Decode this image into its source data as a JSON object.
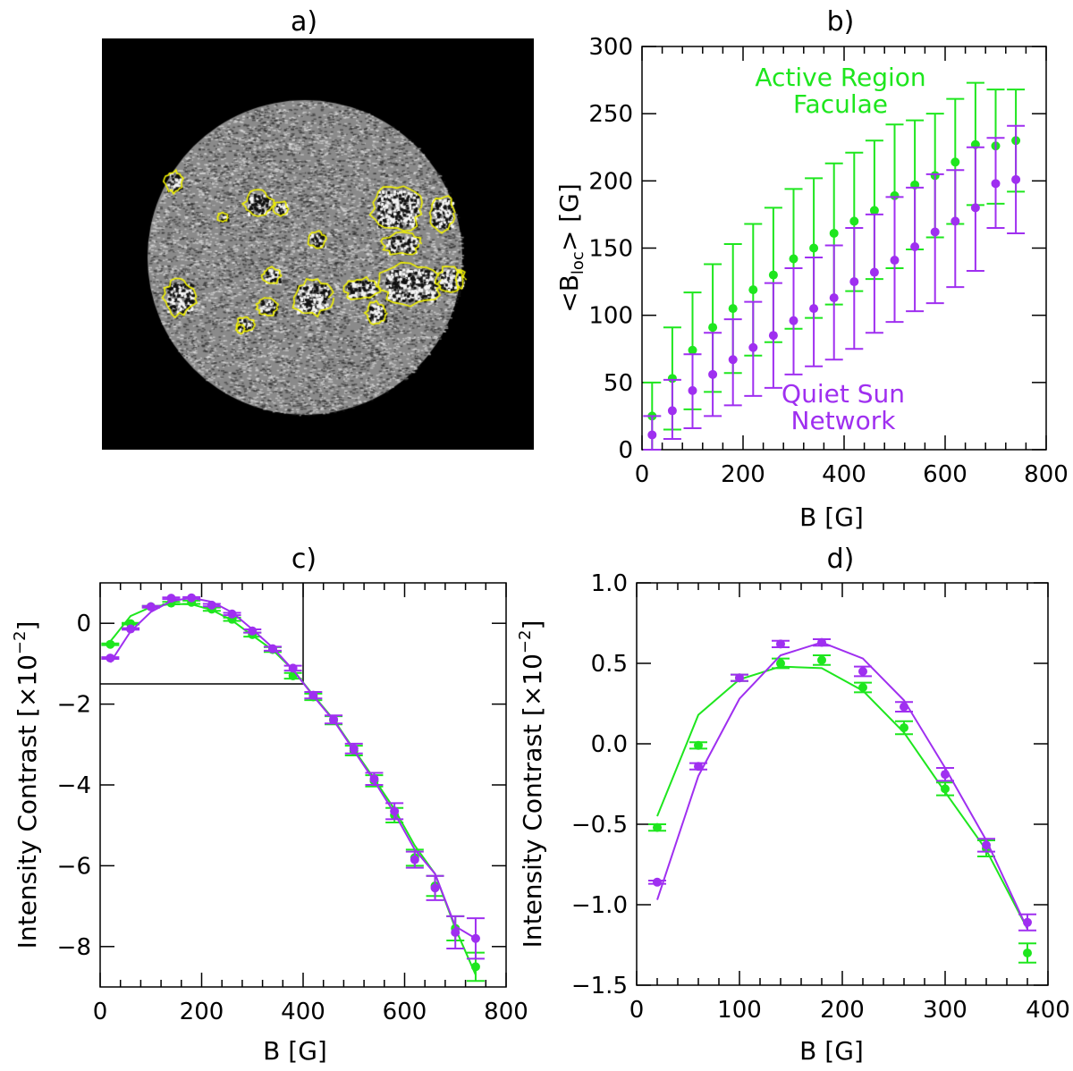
{
  "panel_a": {
    "title": "a)"
  },
  "colors": {
    "green": "#1ee61e",
    "purple": "#9f2ff0",
    "contour": "#f2f200"
  },
  "chart_data": [
    {
      "id": "b",
      "type": "scatter",
      "title": "b)",
      "xlabel": "B [G]",
      "ylabel_main": "<B",
      "ylabel_sub": "loc",
      "ylabel_tail": "> [G]",
      "xlim": [
        0,
        800
      ],
      "ylim": [
        0,
        300
      ],
      "xticks": [
        0,
        200,
        400,
        600,
        800
      ],
      "yticks": [
        0,
        50,
        100,
        150,
        200,
        250,
        300
      ],
      "annotations": [
        {
          "text": "Active Region",
          "color": "green"
        },
        {
          "text": "Faculae",
          "color": "green"
        },
        {
          "text": "Quiet Sun",
          "color": "purple"
        },
        {
          "text": "Network",
          "color": "purple"
        }
      ],
      "x": [
        20,
        60,
        100,
        140,
        180,
        220,
        260,
        300,
        340,
        380,
        420,
        460,
        500,
        540,
        580,
        620,
        660,
        700,
        740
      ],
      "series": [
        {
          "name": "Active Region Faculae",
          "color": "green",
          "values": [
            25,
            53,
            74,
            91,
            105,
            119,
            130,
            142,
            150,
            161,
            170,
            178,
            189,
            197,
            204,
            214,
            227,
            226,
            230
          ],
          "upper": [
            50,
            91,
            117,
            138,
            153,
            168,
            180,
            194,
            202,
            213,
            221,
            230,
            242,
            245,
            250,
            261,
            273,
            268,
            268
          ],
          "lower": [
            0,
            15,
            30,
            43,
            57,
            70,
            80,
            90,
            98,
            108,
            118,
            127,
            135,
            149,
            158,
            168,
            182,
            183,
            192
          ]
        },
        {
          "name": "Quiet Sun Network",
          "color": "purple",
          "values": [
            11,
            29,
            44,
            56,
            67,
            76,
            85,
            96,
            105,
            113,
            125,
            132,
            141,
            151,
            162,
            170,
            180,
            198,
            201
          ],
          "upper": [
            25,
            52,
            71,
            87,
            97,
            110,
            124,
            135,
            143,
            152,
            165,
            175,
            188,
            195,
            205,
            208,
            225,
            232,
            241
          ],
          "lower": [
            0,
            8,
            16,
            25,
            33,
            40,
            46,
            56,
            62,
            67,
            75,
            87,
            95,
            103,
            109,
            121,
            133,
            165,
            161
          ]
        }
      ]
    },
    {
      "id": "c",
      "type": "scatter",
      "title": "c)",
      "xlabel": "B [G]",
      "ylabel": "Intensity Contrast [×10",
      "ylabel_exp": "−2",
      "ylabel_tail": "]",
      "xlim": [
        0,
        800
      ],
      "ylim": [
        -9,
        1
      ],
      "xticks": [
        0,
        200,
        400,
        600,
        800
      ],
      "yticks": [
        0,
        -2,
        -4,
        -6,
        -8
      ],
      "inset_box": {
        "xlim": [
          0,
          400
        ],
        "ylim": [
          -1.5,
          1.0
        ]
      },
      "x": [
        20,
        60,
        100,
        140,
        180,
        220,
        260,
        300,
        340,
        380,
        420,
        460,
        500,
        540,
        580,
        620,
        660,
        700,
        740
      ],
      "series": [
        {
          "name": "Active Region Faculae",
          "color": "green",
          "values": [
            -0.52,
            -0.01,
            0.41,
            0.5,
            0.52,
            0.35,
            0.1,
            -0.28,
            -0.65,
            -1.3,
            -1.82,
            -2.4,
            -3.15,
            -3.9,
            -4.75,
            -5.8,
            -6.5,
            -7.55,
            -8.5
          ],
          "err": [
            0.02,
            0.02,
            0.02,
            0.03,
            0.04,
            0.04,
            0.04,
            0.05,
            0.06,
            0.07,
            0.08,
            0.1,
            0.12,
            0.14,
            0.18,
            0.2,
            0.25,
            0.3,
            0.35
          ],
          "model": [
            -0.45,
            0.18,
            0.4,
            0.48,
            0.47,
            0.33,
            0.07,
            -0.3,
            -0.66,
            -1.15,
            -1.78,
            -2.38,
            -3.12,
            -3.85,
            -4.6,
            -5.5,
            -6.2,
            -7.55,
            -8.7
          ]
        },
        {
          "name": "Quiet Sun Network",
          "color": "purple",
          "values": [
            -0.86,
            -0.14,
            0.41,
            0.62,
            0.63,
            0.45,
            0.23,
            -0.19,
            -0.63,
            -1.11,
            -1.78,
            -2.38,
            -3.1,
            -3.85,
            -4.65,
            -5.85,
            -6.55,
            -7.65,
            -7.8
          ],
          "err": [
            0.02,
            0.02,
            0.02,
            0.02,
            0.02,
            0.03,
            0.03,
            0.04,
            0.05,
            0.06,
            0.08,
            0.1,
            0.12,
            0.15,
            0.2,
            0.2,
            0.3,
            0.4,
            0.5
          ],
          "model": [
            -0.97,
            -0.2,
            0.28,
            0.55,
            0.63,
            0.53,
            0.27,
            -0.15,
            -0.6,
            -1.15,
            -1.8,
            -2.4,
            -3.15,
            -3.9,
            -4.7,
            -5.6,
            -6.2,
            -7.5,
            -7.8
          ]
        }
      ]
    },
    {
      "id": "d",
      "type": "scatter",
      "title": "d)",
      "xlabel": "B [G]",
      "ylabel": "Intensity Contrast [×10",
      "ylabel_exp": "−2",
      "ylabel_tail": "]",
      "xlim": [
        0,
        400
      ],
      "ylim": [
        -1.5,
        1.0
      ],
      "xticks": [
        0,
        100,
        200,
        300,
        400
      ],
      "yticks": [
        1.0,
        0.5,
        0.0,
        -0.5,
        -1.0,
        -1.5
      ],
      "ytick_labels": [
        "1.0",
        "0.5",
        "0.0",
        "−0.5",
        "−1.0",
        "−1.5"
      ],
      "x": [
        20,
        60,
        100,
        140,
        180,
        220,
        260,
        300,
        340,
        380
      ],
      "series": [
        {
          "name": "Active Region Faculae",
          "color": "green",
          "values": [
            -0.52,
            -0.01,
            0.41,
            0.5,
            0.52,
            0.35,
            0.1,
            -0.28,
            -0.65,
            -1.3
          ],
          "err": [
            0.02,
            0.02,
            0.02,
            0.03,
            0.03,
            0.03,
            0.04,
            0.04,
            0.05,
            0.06
          ],
          "model": [
            -0.45,
            0.18,
            0.4,
            0.48,
            0.47,
            0.33,
            0.07,
            -0.3,
            -0.66,
            -1.15
          ]
        },
        {
          "name": "Quiet Sun Network",
          "color": "purple",
          "values": [
            -0.86,
            -0.14,
            0.41,
            0.62,
            0.63,
            0.45,
            0.23,
            -0.19,
            -0.63,
            -1.11
          ],
          "err": [
            0.01,
            0.02,
            0.02,
            0.02,
            0.02,
            0.03,
            0.03,
            0.04,
            0.04,
            0.05
          ],
          "model": [
            -0.97,
            -0.2,
            0.28,
            0.55,
            0.63,
            0.53,
            0.27,
            -0.15,
            -0.6,
            -1.15
          ]
        }
      ]
    }
  ]
}
